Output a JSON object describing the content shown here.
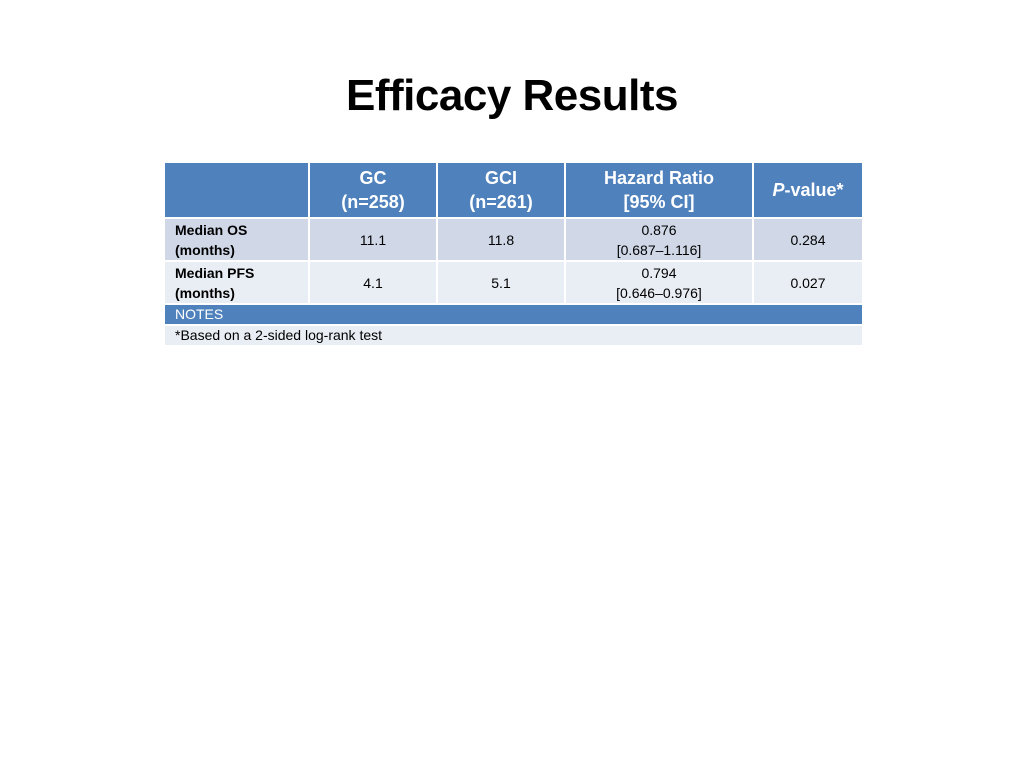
{
  "slide": {
    "title": "Efficacy Results"
  },
  "table": {
    "header": {
      "blank": "",
      "gc": {
        "line1": "GC",
        "line2": "(n=258)"
      },
      "gci": {
        "line1": "GCI",
        "line2": "(n=261)"
      },
      "hazard_ratio": {
        "line1": "Hazard Ratio",
        "line2": "[95% CI]"
      },
      "p_value": {
        "italic": "P",
        "rest": "-value*"
      }
    },
    "rows": [
      {
        "label_line1": "Median OS",
        "label_line2": "(months)",
        "gc": "11.1",
        "gci": "11.8",
        "hr": "0.876",
        "ci": "[0.687–1.116]",
        "p": "0.284"
      },
      {
        "label_line1": "Median PFS",
        "label_line2": "(months)",
        "gc": "4.1",
        "gci": "5.1",
        "hr": "0.794",
        "ci": "[0.646–0.976]",
        "p": "0.027"
      }
    ],
    "notes_header": "NOTES",
    "note_text": "*Based on a 2-sided log-rank test"
  },
  "colors": {
    "header_blue": "#4f81bd",
    "row_dark": "#d0d8e8",
    "row_light": "#e9edf4"
  }
}
